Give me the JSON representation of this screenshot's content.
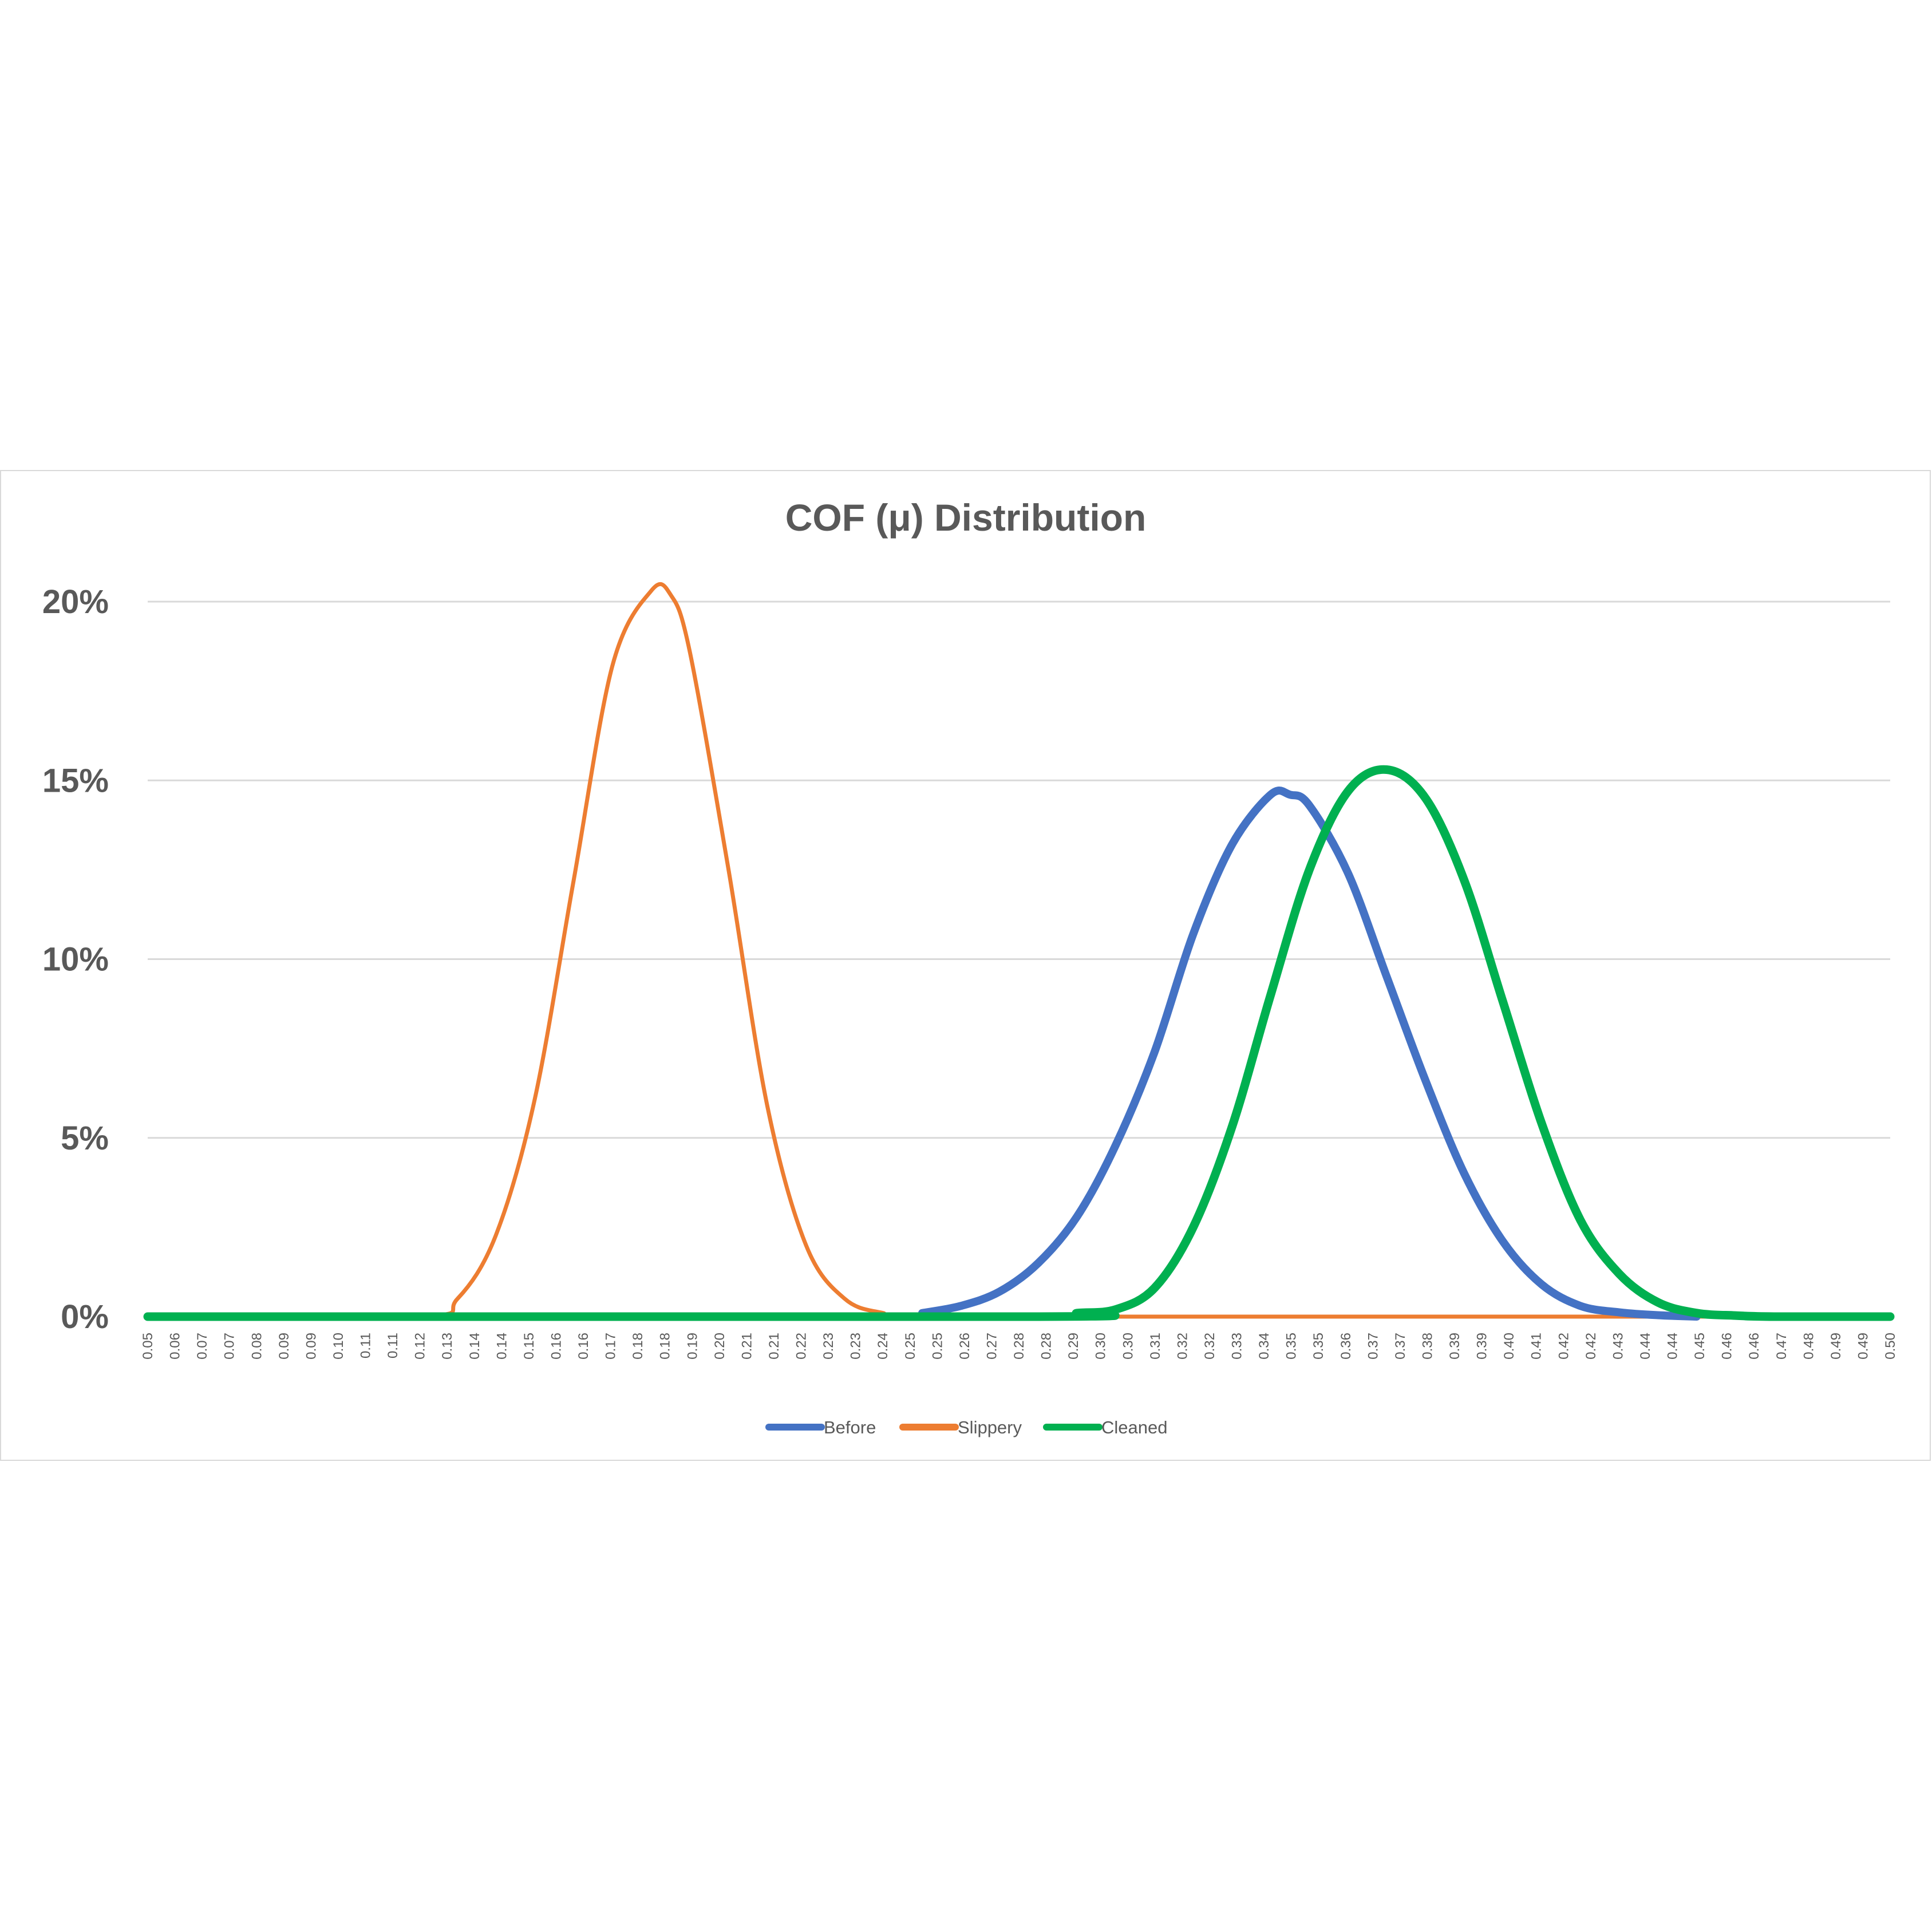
{
  "chart_data": {
    "type": "line",
    "title": "COF (μ) Distribution",
    "xlabel": "",
    "ylabel": "",
    "xlim": [
      0.05,
      0.5
    ],
    "ylim": [
      0,
      0.2
    ],
    "grid": true,
    "legend_position": "bottom",
    "y_ticks": [
      {
        "value": 0,
        "label": "0%"
      },
      {
        "value": 0.05,
        "label": "5%"
      },
      {
        "value": 0.1,
        "label": "10%"
      },
      {
        "value": 0.15,
        "label": "15%"
      },
      {
        "value": 0.2,
        "label": "20%"
      }
    ],
    "x_tick_labels": [
      "0.05",
      "0.06",
      "0.07",
      "0.07",
      "0.08",
      "0.09",
      "0.09",
      "0.10",
      "0.11",
      "0.11",
      "0.12",
      "0.13",
      "0.14",
      "0.14",
      "0.15",
      "0.16",
      "0.16",
      "0.17",
      "0.18",
      "0.18",
      "0.19",
      "0.20",
      "0.21",
      "0.21",
      "0.22",
      "0.23",
      "0.23",
      "0.24",
      "0.25",
      "0.25",
      "0.26",
      "0.27",
      "0.28",
      "0.28",
      "0.29",
      "0.30",
      "0.30",
      "0.31",
      "0.32",
      "0.32",
      "0.33",
      "0.34",
      "0.35",
      "0.35",
      "0.36",
      "0.37",
      "0.37",
      "0.38",
      "0.39",
      "0.39",
      "0.40",
      "0.41",
      "0.42",
      "0.42",
      "0.43",
      "0.44",
      "0.44",
      "0.45",
      "0.46",
      "0.46",
      "0.47",
      "0.48",
      "0.49",
      "0.49",
      "0.50"
    ],
    "series": [
      {
        "name": "Before",
        "color": "#4472c4",
        "x": [
          0.25,
          0.26,
          0.27,
          0.28,
          0.29,
          0.3,
          0.31,
          0.32,
          0.33,
          0.34,
          0.345,
          0.35,
          0.36,
          0.37,
          0.38,
          0.39,
          0.4,
          0.41,
          0.42,
          0.43,
          0.44,
          0.45
        ],
        "values": [
          0.001,
          0.003,
          0.007,
          0.015,
          0.028,
          0.048,
          0.074,
          0.107,
          0.132,
          0.146,
          0.146,
          0.143,
          0.124,
          0.095,
          0.066,
          0.04,
          0.021,
          0.009,
          0.003,
          0.0012,
          0.0004,
          0.0
        ]
      },
      {
        "name": "Slippery",
        "color": "#ed7d31",
        "x": [
          0.05,
          0.12,
          0.13,
          0.14,
          0.15,
          0.16,
          0.17,
          0.18,
          0.185,
          0.19,
          0.2,
          0.21,
          0.22,
          0.23,
          0.24,
          0.25,
          0.5
        ],
        "values": [
          0.0,
          0.0,
          0.005,
          0.023,
          0.061,
          0.122,
          0.182,
          0.203,
          0.202,
          0.186,
          0.125,
          0.059,
          0.02,
          0.005,
          0.001,
          0.0,
          0.0
        ]
      },
      {
        "name": "Cleaned",
        "color": "#00b050",
        "x": [
          0.05,
          0.28,
          0.29,
          0.3,
          0.31,
          0.32,
          0.33,
          0.34,
          0.35,
          0.36,
          0.37,
          0.38,
          0.39,
          0.4,
          0.41,
          0.42,
          0.43,
          0.44,
          0.45,
          0.46,
          0.47,
          0.5
        ],
        "values": [
          0.0,
          0.0,
          0.001,
          0.002,
          0.008,
          0.025,
          0.053,
          0.09,
          0.125,
          0.147,
          0.153,
          0.145,
          0.122,
          0.088,
          0.054,
          0.027,
          0.012,
          0.004,
          0.001,
          0.0003,
          0.0,
          0.0
        ]
      }
    ]
  }
}
